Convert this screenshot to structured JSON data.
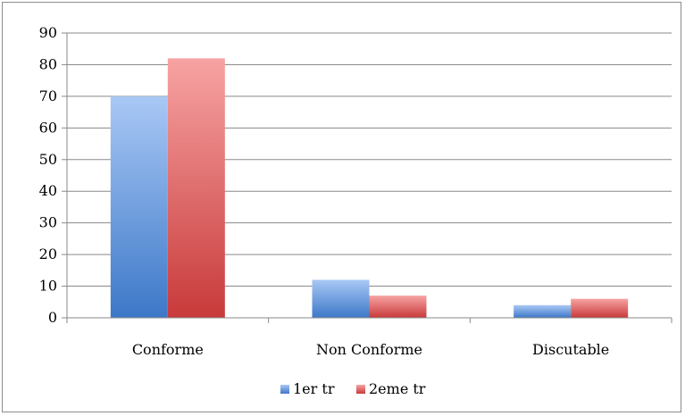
{
  "chart_data": {
    "type": "bar",
    "categories": [
      "Conforme",
      "Non Conforme",
      "Discutable"
    ],
    "series": [
      {
        "name": "1er tr",
        "values": [
          70,
          12,
          4
        ],
        "color": "#4f81bd"
      },
      {
        "name": "2eme tr",
        "values": [
          82,
          7,
          6
        ],
        "color": "#c0504d"
      }
    ],
    "yticks": [
      "0",
      "10",
      "20",
      "30",
      "40",
      "50",
      "60",
      "70",
      "80",
      "90"
    ],
    "ylim": [
      0,
      90
    ],
    "grid": true,
    "legend_position": "bottom",
    "title": "",
    "xlabel": "",
    "ylabel": ""
  }
}
